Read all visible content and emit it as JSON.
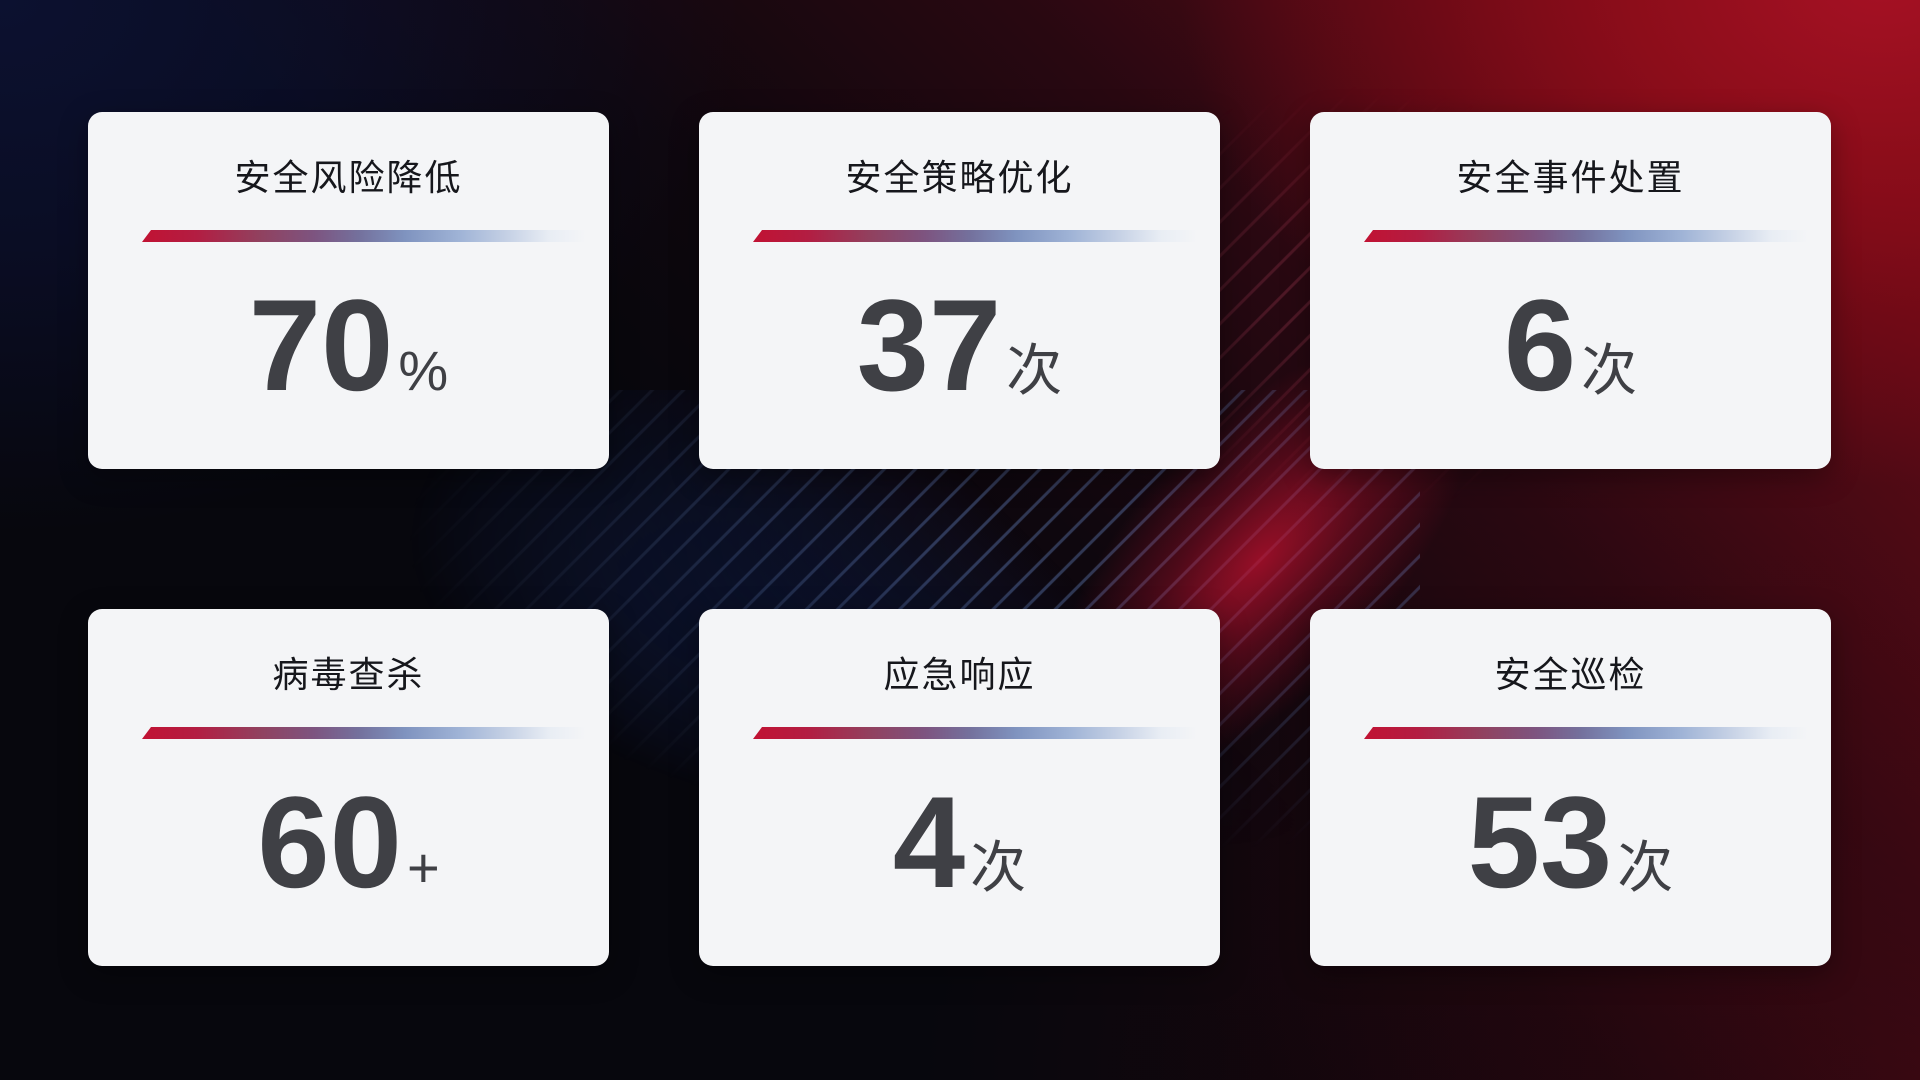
{
  "cards": [
    {
      "title": "安全风险降低",
      "value": "70",
      "unit": "%"
    },
    {
      "title": "安全策略优化",
      "value": "37",
      "unit": "次"
    },
    {
      "title": "安全事件处置",
      "value": "6",
      "unit": "次"
    },
    {
      "title": "病毒查杀",
      "value": "60",
      "unit": "+"
    },
    {
      "title": "应急响应",
      "value": "4",
      "unit": "次"
    },
    {
      "title": "安全巡检",
      "value": "53",
      "unit": "次"
    }
  ],
  "colors": {
    "card_background": "#f4f5f7",
    "title_text": "#16171c",
    "value_text": "#3f4045",
    "divider_red": "#c11233",
    "divider_purple": "#7d5480",
    "divider_steel_blue": "#9fb3d6",
    "divider_fade": "#dfe7f2",
    "bg_navy": "#0a0d24",
    "bg_bright_red": "#a61124",
    "bg_maroon": "#2a070f",
    "bg_black": "#07070d",
    "streak_blue": "#7aa0eb"
  }
}
